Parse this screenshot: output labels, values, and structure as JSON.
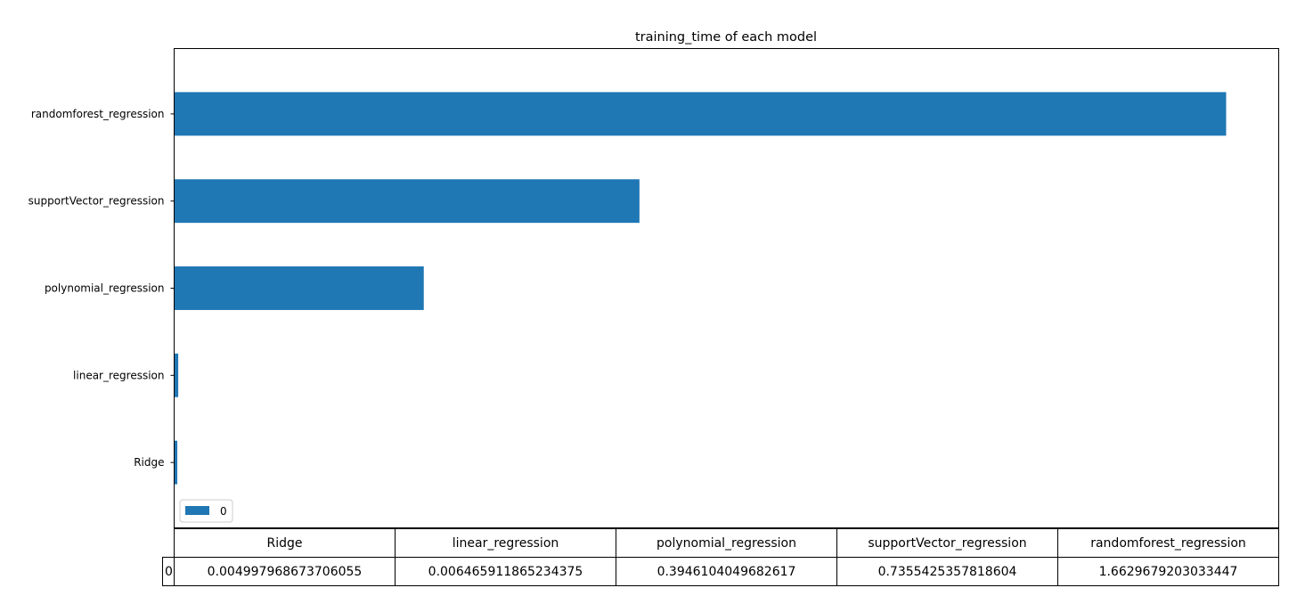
{
  "chart_data": {
    "type": "bar",
    "orientation": "horizontal",
    "title": "training_time of each model",
    "categories": [
      "Ridge",
      "linear_regression",
      "polynomial_regression",
      "supportVector_regression",
      "randomforest_regression"
    ],
    "series": [
      {
        "name": "0",
        "values": [
          0.004997968673706055,
          0.006465911865234375,
          0.3946104049682617,
          0.7355425357818604,
          1.6629679203033447
        ],
        "color": "#1f77b4"
      }
    ],
    "xlim": [
      0,
      1.7461
    ],
    "legend": {
      "position": "lower-left",
      "entries": [
        "0"
      ]
    },
    "grid": false
  },
  "table": {
    "row_label": "0",
    "headers": [
      "Ridge",
      "linear_regression",
      "polynomial_regression",
      "supportVector_regression",
      "randomforest_regression"
    ],
    "values": [
      "0.004997968673706055",
      "0.006465911865234375",
      "0.3946104049682617",
      "0.7355425357818604",
      "1.6629679203033447"
    ]
  }
}
